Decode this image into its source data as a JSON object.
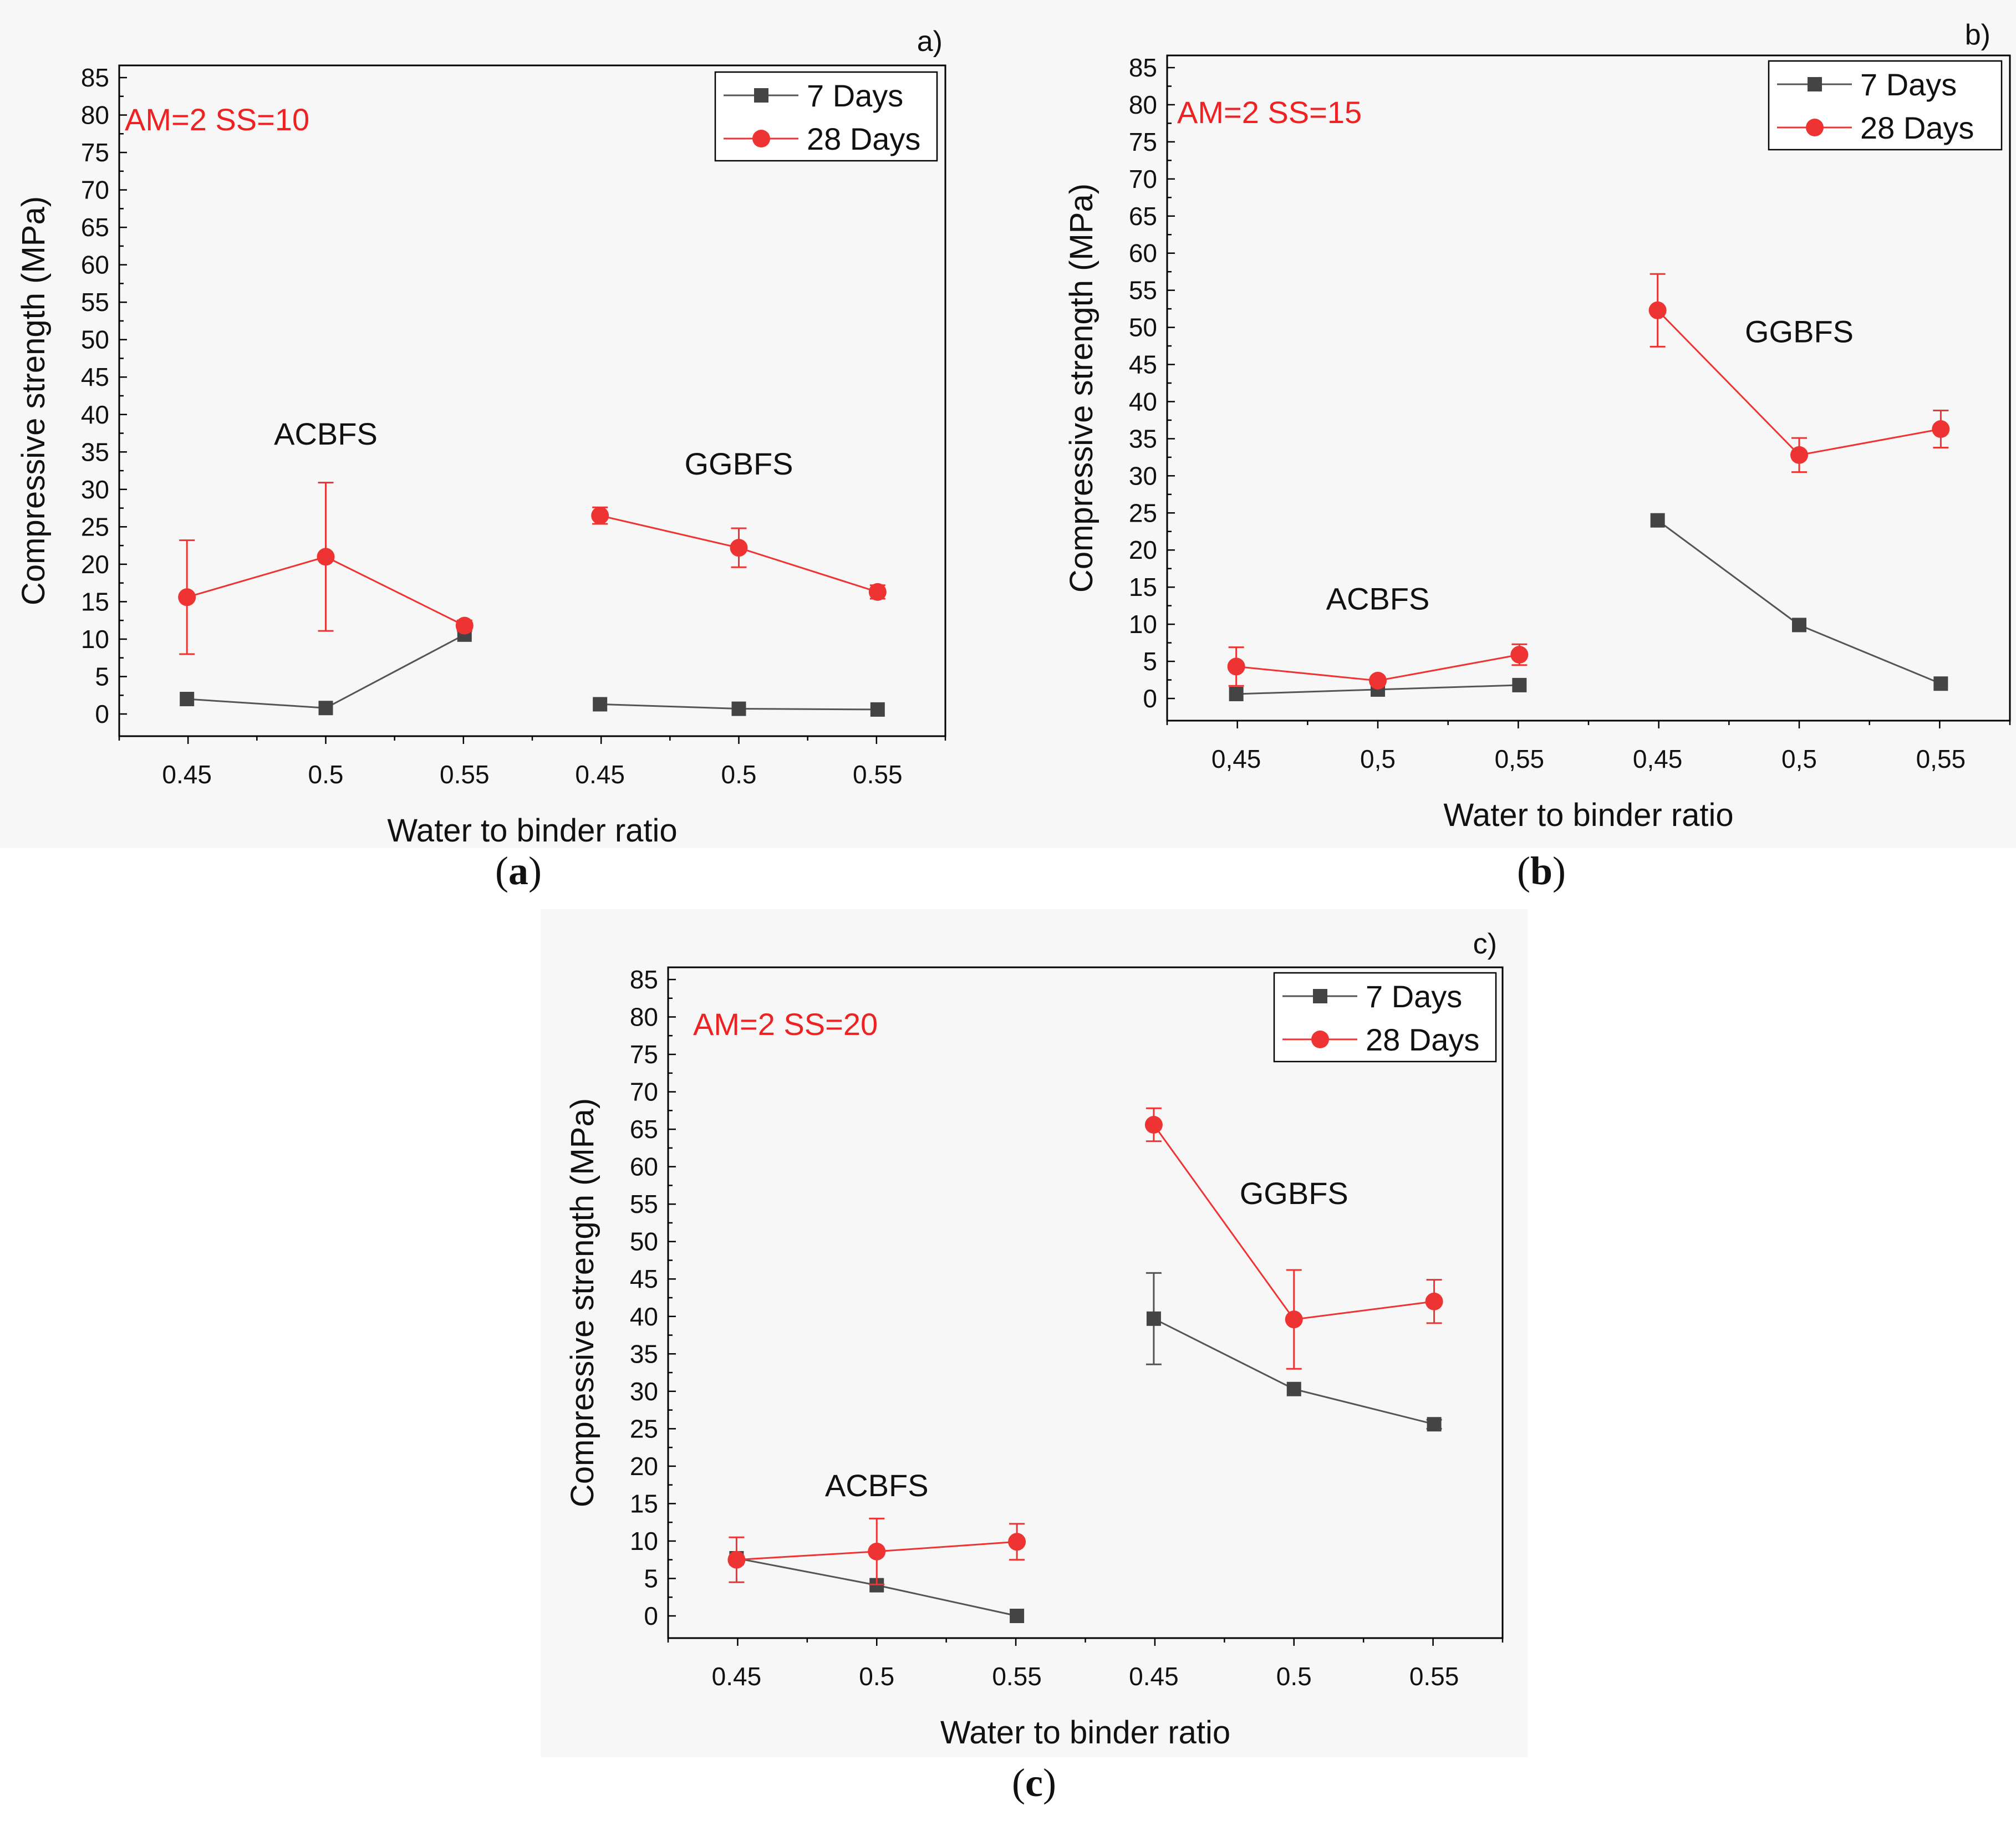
{
  "colors": {
    "s7": "#555555",
    "s28": "#ee3333",
    "annotation": "#ee2222"
  },
  "chart_data": [
    {
      "type": "line",
      "panel_letter": "a)",
      "caption": "a",
      "annotation": "AM=2 SS=10",
      "xlabel": "Water to binder ratio",
      "ylabel": "Compressive strength (MPa)",
      "ylim": [
        0,
        85
      ],
      "yticks": [
        0,
        5,
        10,
        15,
        20,
        25,
        30,
        35,
        40,
        45,
        50,
        55,
        60,
        65,
        70,
        75,
        80,
        85
      ],
      "categories": [
        "0.45",
        "0.5",
        "0.55",
        "0.45",
        "0.5",
        "0.55"
      ],
      "groups": [
        {
          "label": "ACBFS",
          "y": 36
        },
        {
          "label": "GGBFS",
          "y": 32
        }
      ],
      "legend": [
        "7 Days",
        "28 Days"
      ],
      "series": [
        {
          "name": "7 Days",
          "values": [
            2.0,
            0.8,
            10.6,
            1.3,
            0.7,
            0.6
          ],
          "errors": [
            0,
            0,
            0,
            0,
            0,
            0
          ]
        },
        {
          "name": "28 Days",
          "values": [
            15.6,
            21.0,
            11.8,
            26.5,
            22.2,
            16.3
          ],
          "errors": [
            7.6,
            9.9,
            0.7,
            1.1,
            2.6,
            0.9
          ]
        }
      ]
    },
    {
      "type": "line",
      "panel_letter": "b)",
      "caption": "b",
      "annotation": "AM=2 SS=15",
      "xlabel": "Water to binder ratio",
      "ylabel": "Compressive strength (MPa)",
      "ylim": [
        0,
        85
      ],
      "yticks": [
        0,
        5,
        10,
        15,
        20,
        25,
        30,
        35,
        40,
        45,
        50,
        55,
        60,
        65,
        70,
        75,
        80,
        85
      ],
      "categories": [
        "0,45",
        "0,5",
        "0,55",
        "0,45",
        "0,5",
        "0,55"
      ],
      "groups": [
        {
          "label": "ACBFS",
          "y": 12
        },
        {
          "label": "GGBFS",
          "y": 48
        }
      ],
      "legend": [
        "7 Days",
        "28 Days"
      ],
      "series": [
        {
          "name": "7 Days",
          "values": [
            0.6,
            1.2,
            1.8,
            24.0,
            9.9,
            2.0
          ],
          "errors": [
            0,
            0,
            0,
            0,
            0,
            0
          ]
        },
        {
          "name": "28 Days",
          "values": [
            4.3,
            2.4,
            5.9,
            52.3,
            32.8,
            36.3
          ],
          "errors": [
            2.6,
            0.5,
            1.4,
            4.9,
            2.3,
            2.5
          ]
        }
      ]
    },
    {
      "type": "line",
      "panel_letter": "c)",
      "caption": "c",
      "annotation": "AM=2 SS=20",
      "xlabel": "Water to binder ratio",
      "ylabel": "Compressive strength (MPa)",
      "ylim": [
        0,
        85
      ],
      "yticks": [
        0,
        5,
        10,
        15,
        20,
        25,
        30,
        35,
        40,
        45,
        50,
        55,
        60,
        65,
        70,
        75,
        80,
        85
      ],
      "categories": [
        "0.45",
        "0.5",
        "0.55",
        "0.45",
        "0.5",
        "0.55"
      ],
      "groups": [
        {
          "label": "ACBFS",
          "y": 16
        },
        {
          "label": "GGBFS",
          "y": 55
        }
      ],
      "legend": [
        "7 Days",
        "28 Days"
      ],
      "series": [
        {
          "name": "7 Days",
          "values": [
            7.7,
            4.1,
            0.0,
            39.7,
            30.3,
            25.6
          ],
          "errors": [
            0,
            0,
            0,
            6.1,
            0,
            0.6
          ]
        },
        {
          "name": "28 Days",
          "values": [
            7.5,
            8.6,
            9.9,
            65.6,
            39.6,
            42.0
          ],
          "errors": [
            3.0,
            4.4,
            2.4,
            2.2,
            6.6,
            2.9
          ]
        }
      ]
    }
  ]
}
